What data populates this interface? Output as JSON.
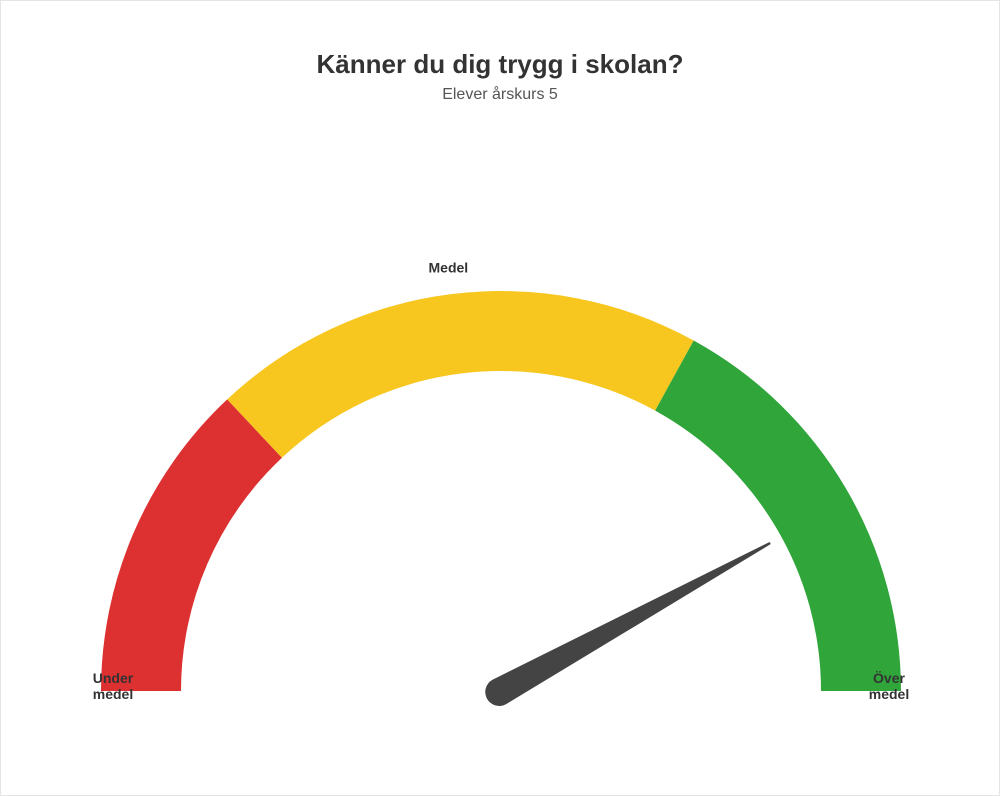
{
  "title": "Känner du dig trygg i skolan?",
  "subtitle": "Elever årskurs 5",
  "gauge": {
    "type": "gauge",
    "min": 0,
    "max": 100,
    "value": 84,
    "needle_color": "#444444",
    "background_color": "#ffffff",
    "outer_radius": 400,
    "inner_radius": 320,
    "segments": [
      {
        "from": 0,
        "to": 26,
        "color": "#dd3030",
        "label": "Under\nmedel",
        "label_pos": "start"
      },
      {
        "from": 26,
        "to": 66,
        "color": "#f7c720",
        "label": "Medel",
        "label_pos": "top"
      },
      {
        "from": 66,
        "to": 100,
        "color": "#2fa53a",
        "label": "Över\nmedel",
        "label_pos": "end"
      }
    ],
    "label_fontsize": 14,
    "label_fontweight": 700,
    "title_fontsize": 26,
    "subtitle_fontsize": 16
  }
}
